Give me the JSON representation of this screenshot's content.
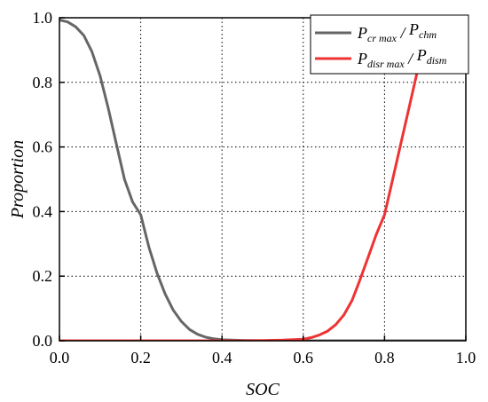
{
  "chart_data": {
    "type": "line",
    "title": "",
    "xlabel": "SOC",
    "ylabel": "Proportion",
    "xlim": [
      0.0,
      1.0
    ],
    "ylim": [
      0.0,
      1.0
    ],
    "xticks": [
      0.0,
      0.2,
      0.4,
      0.6,
      0.8,
      1.0
    ],
    "yticks": [
      0.0,
      0.2,
      0.4,
      0.6,
      0.8,
      1.0
    ],
    "xtick_labels": [
      "0.0",
      "0.2",
      "0.4",
      "0.6",
      "0.8",
      "1.0"
    ],
    "ytick_labels": [
      "0.0",
      "0.2",
      "0.4",
      "0.6",
      "0.8",
      "1.0"
    ],
    "grid": "dotted",
    "legend_position": "top-right",
    "series": [
      {
        "name": "Pcr max / Pchm",
        "legend": {
          "p1": "P",
          "sub1": "cr max",
          "sep": " / ",
          "p2": "P",
          "sub2": "chm"
        },
        "color": "#666666",
        "x": [
          0.0,
          0.02,
          0.04,
          0.06,
          0.08,
          0.1,
          0.12,
          0.14,
          0.16,
          0.18,
          0.2,
          0.22,
          0.24,
          0.26,
          0.28,
          0.3,
          0.32,
          0.34,
          0.36,
          0.38,
          0.4,
          0.45,
          0.5,
          0.55,
          0.6,
          0.7,
          0.8,
          0.9,
          1.0
        ],
        "y": [
          0.993,
          0.987,
          0.972,
          0.945,
          0.895,
          0.82,
          0.72,
          0.61,
          0.5,
          0.43,
          0.39,
          0.29,
          0.21,
          0.145,
          0.095,
          0.06,
          0.035,
          0.02,
          0.011,
          0.006,
          0.003,
          0.001,
          0.0,
          0.0,
          0.0,
          0.0,
          0.0,
          0.0,
          0.0
        ]
      },
      {
        "name": "Pdisr max / Pdism",
        "legend": {
          "p1": "P",
          "sub1": "disr max",
          "sep": " / ",
          "p2": "P",
          "sub2": "dism"
        },
        "color": "#ee3333",
        "x": [
          0.0,
          0.1,
          0.2,
          0.3,
          0.4,
          0.45,
          0.5,
          0.55,
          0.6,
          0.62,
          0.64,
          0.66,
          0.68,
          0.7,
          0.72,
          0.74,
          0.76,
          0.78,
          0.8,
          0.82,
          0.84,
          0.86,
          0.88
        ],
        "y": [
          0.0,
          0.0,
          0.0,
          0.0,
          0.0,
          0.0,
          0.0005,
          0.002,
          0.005,
          0.01,
          0.018,
          0.03,
          0.05,
          0.08,
          0.125,
          0.19,
          0.26,
          0.33,
          0.39,
          0.5,
          0.61,
          0.72,
          0.83
        ]
      }
    ]
  }
}
